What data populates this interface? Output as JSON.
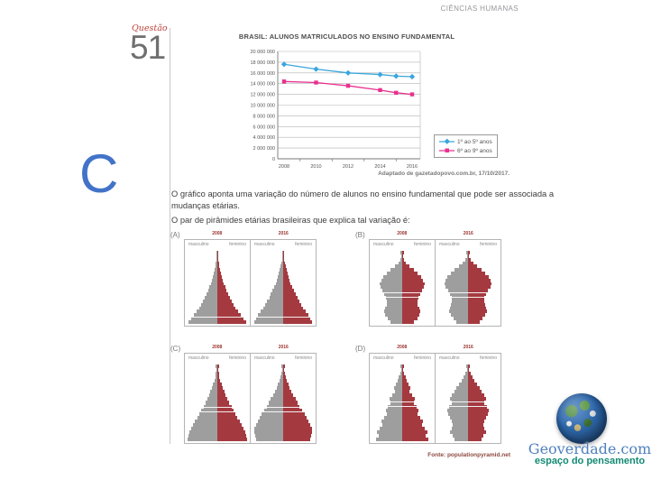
{
  "page": {
    "header": "CIÊNCIAS HUMANAS",
    "question_label": "Questão",
    "question_number": "51",
    "answer_letter": "C"
  },
  "chart_data": {
    "type": "line",
    "title": "BRASIL: ALUNOS MATRICULADOS NO ENSINO FUNDAMENTAL",
    "x": [
      2008,
      2010,
      2012,
      2014,
      2015,
      2016
    ],
    "xticks": [
      2008,
      2010,
      2012,
      2014,
      2016
    ],
    "ylim": [
      0,
      20000000
    ],
    "ytick_step": 2000000,
    "grid": true,
    "legend_position": "right-bottom",
    "series": [
      {
        "name": "1º ao 5º anos",
        "color": "#3aa6dc",
        "marker": "diamond",
        "values": [
          17600000,
          16700000,
          16000000,
          15700000,
          15400000,
          15300000
        ]
      },
      {
        "name": "6º ao 9º anos",
        "color": "#e9308f",
        "marker": "square",
        "values": [
          14400000,
          14200000,
          13600000,
          12800000,
          12300000,
          12000000
        ]
      }
    ],
    "source": "Adaptado de gazetadopovo.com.br, 17/10/2017."
  },
  "question": {
    "prompt1": "O gráfico aponta uma variação do número de alunos no ensino fundamental que pode ser associada a mudanças etárias.",
    "prompt2": "O par de pirâmides etárias brasileiras que explica tal variação é:",
    "male_label": "masculino",
    "female_label": "feminino",
    "male_color": "#9e9e9e",
    "female_color": "#a43a40",
    "source": "Fonte: populationpyramid.net",
    "options": [
      {
        "label": "(A)",
        "ref_lines": [
          0.9
        ],
        "pyramids": [
          {
            "year": "2008",
            "rows": [
              4,
              2,
              3,
              5,
              7,
              9,
              12,
              15,
              18,
              22,
              26,
              31,
              36,
              42,
              48,
              55,
              62,
              70,
              78,
              87,
              96
            ]
          },
          {
            "year": "2016",
            "rows": [
              4,
              3,
              4,
              6,
              8,
              11,
              14,
              17,
              21,
              25,
              30,
              35,
              41,
              47,
              54,
              61,
              68,
              76,
              84,
              91,
              97
            ]
          }
        ]
      },
      {
        "label": "(B)",
        "ref_lines": [
          0.57,
          0.63
        ],
        "pyramids": [
          {
            "year": "2008",
            "rows": [
              5,
              3,
              7,
              13,
              24,
              38,
              52,
              63,
              71,
              75,
              73,
              67,
              60,
              55,
              52,
              53,
              57,
              61,
              58,
              50,
              40
            ]
          },
          {
            "year": "2016",
            "rows": [
              5,
              4,
              9,
              17,
              30,
              45,
              59,
              70,
              77,
              79,
              75,
              68,
              61,
              56,
              54,
              57,
              62,
              64,
              58,
              48,
              38
            ]
          }
        ]
      },
      {
        "label": "(C)",
        "ref_lines": [
          0.55,
          0.61
        ],
        "pyramids": [
          {
            "year": "2008",
            "rows": [
              5,
              3,
              5,
              7,
              10,
              14,
              18,
              23,
              28,
              34,
              40,
              47,
              54,
              61,
              68,
              75,
              82,
              88,
              93,
              97,
              100
            ]
          },
          {
            "year": "2016",
            "rows": [
              5,
              4,
              6,
              9,
              13,
              17,
              22,
              28,
              34,
              41,
              48,
              56,
              64,
              72,
              79,
              86,
              92,
              96,
              98,
              95,
              90
            ]
          }
        ]
      },
      {
        "label": "(D)",
        "ref_lines": [
          0.48,
          0.54
        ],
        "pyramids": [
          {
            "year": "2008",
            "rows": [
              5,
              3,
              6,
              11,
              15,
              21,
              27,
              25,
              33,
              41,
              38,
              48,
              56,
              52,
              62,
              70,
              66,
              76,
              84,
              80,
              88
            ]
          },
          {
            "year": "2016",
            "rows": [
              5,
              4,
              8,
              15,
              22,
              30,
              38,
              46,
              54,
              60,
              56,
              64,
              70,
              66,
              60,
              56,
              52,
              56,
              60,
              52,
              44
            ]
          }
        ]
      }
    ]
  },
  "footer_logo": {
    "title": "Geoverdade.com",
    "subtitle": "espaço do pensamento"
  }
}
